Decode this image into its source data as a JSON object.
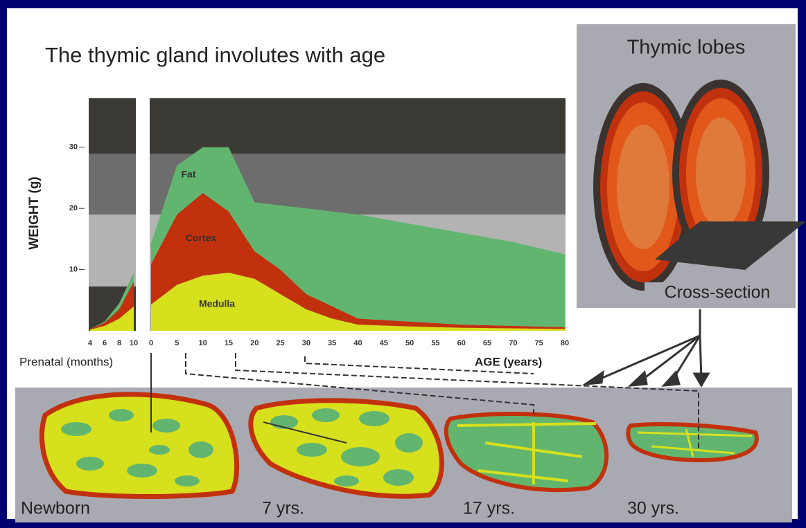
{
  "title": "The thymic gland involutes with age",
  "lobes": {
    "title": "Thymic lobes",
    "cross_section": "Cross-section"
  },
  "sections": [
    "Newborn",
    "7 yrs.",
    "17 yrs.",
    "30 yrs."
  ],
  "chart_data": [
    {
      "type": "area",
      "stacked": true,
      "y_label": "WEIGHT (g)",
      "x_label": "Prenatal (months)",
      "x": [
        4,
        6,
        8,
        10
      ],
      "xlim": [
        4,
        10
      ],
      "xticks": [
        4,
        6,
        8,
        10
      ],
      "ylim": [
        0,
        38
      ],
      "yticks": [
        10,
        20,
        30
      ],
      "series": [
        {
          "color": "#d6e01c",
          "values": [
            0.2,
            0.8,
            2,
            4
          ]
        },
        {
          "color": "#c2310d",
          "values": [
            0.1,
            0.5,
            1.5,
            4
          ]
        },
        {
          "color": "#62b56e",
          "values": [
            0,
            0.2,
            1,
            1.5
          ]
        }
      ]
    },
    {
      "type": "area",
      "stacked": true,
      "x_label": "AGE (years)",
      "x": [
        0,
        5,
        10,
        15,
        20,
        25,
        30,
        35,
        40,
        50,
        60,
        70,
        80
      ],
      "xlim": [
        0,
        80
      ],
      "xticks": [
        0,
        5,
        10,
        15,
        20,
        25,
        30,
        35,
        40,
        45,
        50,
        55,
        60,
        65,
        70,
        75,
        80
      ],
      "ylim": [
        0,
        38
      ],
      "series": [
        {
          "name": "Medulla",
          "color": "#d6e01c",
          "values": [
            4.3,
            7.5,
            9,
            9.5,
            8.5,
            6,
            3.5,
            2,
            1,
            0.7,
            0.5,
            0.4,
            0.3
          ]
        },
        {
          "name": "Cortex",
          "color": "#c2310d",
          "values": [
            6.6,
            11.5,
            13.5,
            10,
            4.5,
            4,
            2.5,
            2,
            1,
            0.8,
            0.5,
            0.4,
            0.3
          ]
        },
        {
          "name": "Fat",
          "color": "#62b56e",
          "values": [
            3.4,
            8,
            7.5,
            10.5,
            8,
            10.5,
            14,
            15.5,
            17,
            16,
            15,
            13.7,
            11.9
          ]
        }
      ]
    }
  ]
}
